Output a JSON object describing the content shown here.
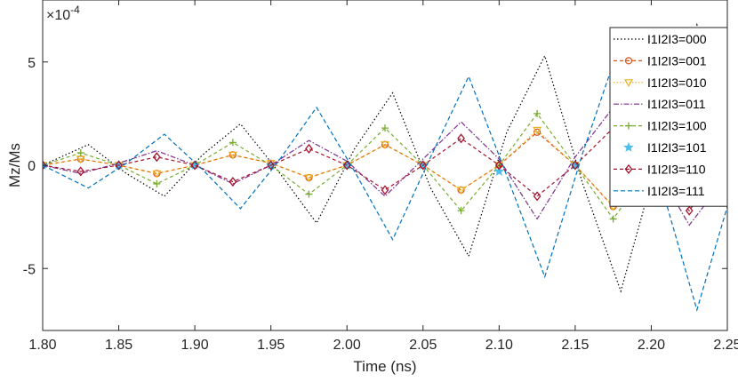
{
  "chart_data": {
    "type": "line",
    "xlabel": "Time (ns)",
    "ylabel": "Mz/Ms",
    "exponent_label": "×10",
    "exponent_power": "-4",
    "xlim": [
      1.8,
      2.25
    ],
    "ylim": [
      -8,
      8
    ],
    "x_ticks": [
      "1.80",
      "1.85",
      "1.90",
      "1.95",
      "2.00",
      "2.05",
      "2.10",
      "2.15",
      "2.20",
      "2.25"
    ],
    "y_ticks": [
      "5",
      "0",
      "-5"
    ],
    "x_tick_values": [
      1.8,
      1.85,
      1.9,
      1.95,
      2.0,
      2.05,
      2.1,
      2.15,
      2.2,
      2.25
    ],
    "y_tick_values": [
      5,
      0,
      -5
    ],
    "legend_position": "top-right",
    "series": [
      {
        "name": "I1I2I3=000",
        "color": "#000000",
        "dash": "1.5 2.5",
        "marker": "none",
        "x": [
          1.8,
          1.83,
          1.855,
          1.88,
          1.905,
          1.93,
          1.955,
          1.98,
          2.005,
          2.03,
          2.055,
          2.08,
          2.105,
          2.13,
          2.155,
          2.18,
          2.205,
          2.23,
          2.25
        ],
        "y": [
          0,
          1.0,
          -0.4,
          -1.5,
          0.5,
          2.0,
          -0.3,
          -2.8,
          0.8,
          3.5,
          -1.1,
          -4.4,
          1.6,
          5.3,
          -0.9,
          -6.1,
          0.5,
          6.8,
          2.0
        ]
      },
      {
        "name": "I1I2I3=001",
        "color": "#d95319",
        "dash": "4 3",
        "marker": "circle",
        "x": [
          1.8,
          1.825,
          1.85,
          1.875,
          1.9,
          1.925,
          1.95,
          1.975,
          2.0,
          2.025,
          2.05,
          2.075,
          2.1,
          2.125,
          2.15,
          2.175,
          2.2,
          2.225,
          2.25
        ],
        "y": [
          0,
          0.3,
          0.0,
          -0.4,
          0.0,
          0.5,
          0.1,
          -0.6,
          0.0,
          1.0,
          0.0,
          -1.2,
          0.0,
          1.6,
          0.0,
          -2.0,
          -0.2,
          0.6,
          0.7
        ]
      },
      {
        "name": "I1I2I3=010",
        "color": "#edb120",
        "dash": "1.5 2",
        "marker": "triangle-down",
        "x": [
          1.8,
          1.825,
          1.85,
          1.875,
          1.9,
          1.925,
          1.95,
          1.975,
          2.0,
          2.025,
          2.05,
          2.075,
          2.1,
          2.125,
          2.15,
          2.175,
          2.2,
          2.225,
          2.25
        ],
        "y": [
          0,
          0.3,
          0.0,
          -0.4,
          0.0,
          0.5,
          0.1,
          -0.6,
          0.0,
          1.0,
          0.0,
          -1.2,
          0.0,
          1.7,
          0.0,
          -2.0,
          -0.2,
          0.6,
          0.7
        ]
      },
      {
        "name": "I1I2I3=011",
        "color": "#7e2f8e",
        "dash": "6 2 1.5 2",
        "marker": "none",
        "x": [
          1.8,
          1.825,
          1.85,
          1.875,
          1.9,
          1.925,
          1.95,
          1.975,
          2.0,
          2.025,
          2.05,
          2.075,
          2.1,
          2.125,
          2.15,
          2.175,
          2.2,
          2.225,
          2.25
        ],
        "y": [
          0,
          -0.4,
          0.1,
          0.7,
          0.0,
          -0.9,
          0.0,
          1.2,
          0.2,
          -1.5,
          0.3,
          2.1,
          0.3,
          -2.6,
          0.4,
          2.8,
          0.3,
          -2.9,
          -0.5
        ]
      },
      {
        "name": "I1I2I3=100",
        "color": "#77ac30",
        "dash": "4 3",
        "marker": "plus",
        "x": [
          1.8,
          1.825,
          1.85,
          1.875,
          1.9,
          1.925,
          1.95,
          1.975,
          2.0,
          2.025,
          2.05,
          2.075,
          2.1,
          2.125,
          2.15,
          2.175,
          2.2,
          2.225,
          2.25
        ],
        "y": [
          0,
          0.6,
          0.0,
          -0.9,
          0.0,
          1.1,
          0.0,
          -1.4,
          0.0,
          1.8,
          0.0,
          -2.2,
          0.0,
          2.5,
          0.0,
          -2.6,
          0.0,
          0.5,
          -1.9
        ]
      },
      {
        "name": "I1I2I3=101",
        "color": "#4dbeee",
        "dash": "none",
        "marker": "star",
        "x": [
          1.8,
          1.85,
          1.9,
          1.95,
          2.0,
          2.05,
          2.1,
          2.15,
          2.2,
          2.25
        ],
        "y": [
          0,
          0,
          0,
          0,
          0,
          0,
          -0.3,
          0,
          0,
          0
        ]
      },
      {
        "name": "I1I2I3=110",
        "color": "#a2142f",
        "dash": "4 3",
        "marker": "diamond",
        "x": [
          1.8,
          1.825,
          1.85,
          1.875,
          1.9,
          1.925,
          1.95,
          1.975,
          2.0,
          2.025,
          2.05,
          2.075,
          2.1,
          2.125,
          2.15,
          2.175,
          2.2,
          2.225,
          2.25
        ],
        "y": [
          0,
          -0.3,
          0.0,
          0.4,
          0.0,
          -0.8,
          0.0,
          0.8,
          0.0,
          -1.2,
          0.0,
          1.3,
          0.0,
          -1.5,
          0.0,
          1.8,
          0.0,
          -2.2,
          0.4
        ]
      },
      {
        "name": "I1I2I3=111",
        "color": "#0072bd",
        "dash": "5 3",
        "marker": "none",
        "x": [
          1.8,
          1.83,
          1.855,
          1.88,
          1.905,
          1.93,
          1.955,
          1.98,
          2.005,
          2.03,
          2.055,
          2.08,
          2.105,
          2.13,
          2.155,
          2.18,
          2.205,
          2.23,
          2.25
        ],
        "y": [
          0,
          -1.1,
          0.1,
          1.5,
          -0.2,
          -2.1,
          0.2,
          2.8,
          -0.3,
          -3.6,
          0.4,
          4.3,
          -0.5,
          -5.4,
          0.6,
          6.0,
          -0.6,
          -7.0,
          -2.0
        ]
      }
    ]
  }
}
